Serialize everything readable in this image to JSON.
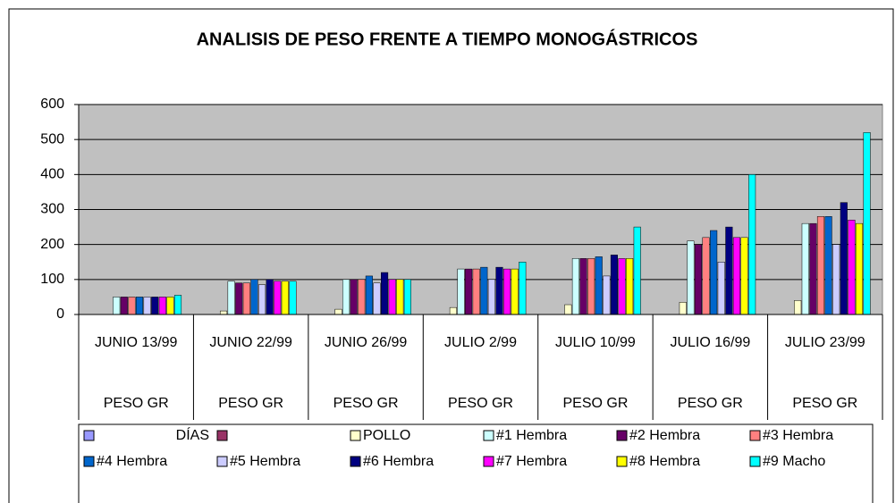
{
  "chart_data": {
    "type": "bar",
    "title": "ANALISIS DE PESO FRENTE A TIEMPO MONOGÁSTRICOS",
    "categories": [
      "JUNIO 13/99",
      "JUNIO 22/99",
      "JUNIO 26/99",
      "JULIO 2/99",
      "JULIO 10/99",
      "JULIO 16/99",
      "JULIO 23/99"
    ],
    "subcategories": [
      "PESO GR",
      "PESO GR",
      "PESO GR",
      "PESO GR",
      "PESO GR",
      "PESO GR",
      "PESO GR"
    ],
    "ylim": [
      0,
      600
    ],
    "yticks": [
      0,
      100,
      200,
      300,
      400,
      500,
      600
    ],
    "grid": true,
    "legend": "bottom",
    "series": [
      {
        "name": "DÍAS",
        "color": "#9999FF",
        "values": [
          null,
          null,
          null,
          null,
          null,
          null,
          null
        ]
      },
      {
        "name": null,
        "color": "#993366",
        "values": [
          null,
          null,
          null,
          null,
          null,
          null,
          null
        ]
      },
      {
        "name": "POLLO",
        "color": "#FFFFCC",
        "values": [
          0,
          10,
          15,
          20,
          28,
          35,
          40
        ]
      },
      {
        "name": "#1 Hembra",
        "color": "#CCFFFF",
        "values": [
          50,
          95,
          100,
          130,
          160,
          210,
          260
        ]
      },
      {
        "name": "#2 Hembra",
        "color": "#660066",
        "values": [
          50,
          90,
          100,
          130,
          160,
          200,
          260
        ]
      },
      {
        "name": "#3 Hembra",
        "color": "#FF8080",
        "values": [
          50,
          90,
          100,
          130,
          160,
          220,
          280
        ]
      },
      {
        "name": "#4 Hembra",
        "color": "#0066CC",
        "values": [
          50,
          100,
          110,
          135,
          165,
          240,
          280
        ]
      },
      {
        "name": "#5 Hembra",
        "color": "#CCCCFF",
        "values": [
          50,
          85,
          90,
          100,
          110,
          150,
          200
        ]
      },
      {
        "name": "#6 Hembra",
        "color": "#000080",
        "values": [
          50,
          100,
          120,
          135,
          170,
          250,
          320
        ]
      },
      {
        "name": "#7 Hembra",
        "color": "#FF00FF",
        "values": [
          50,
          95,
          100,
          130,
          160,
          220,
          270
        ]
      },
      {
        "name": "#8 Hembra",
        "color": "#FFFF00",
        "values": [
          50,
          95,
          100,
          130,
          160,
          220,
          260
        ]
      },
      {
        "name": "#9 Macho",
        "color": "#00FFFF",
        "values": [
          55,
          95,
          100,
          150,
          250,
          400,
          520
        ]
      }
    ]
  }
}
